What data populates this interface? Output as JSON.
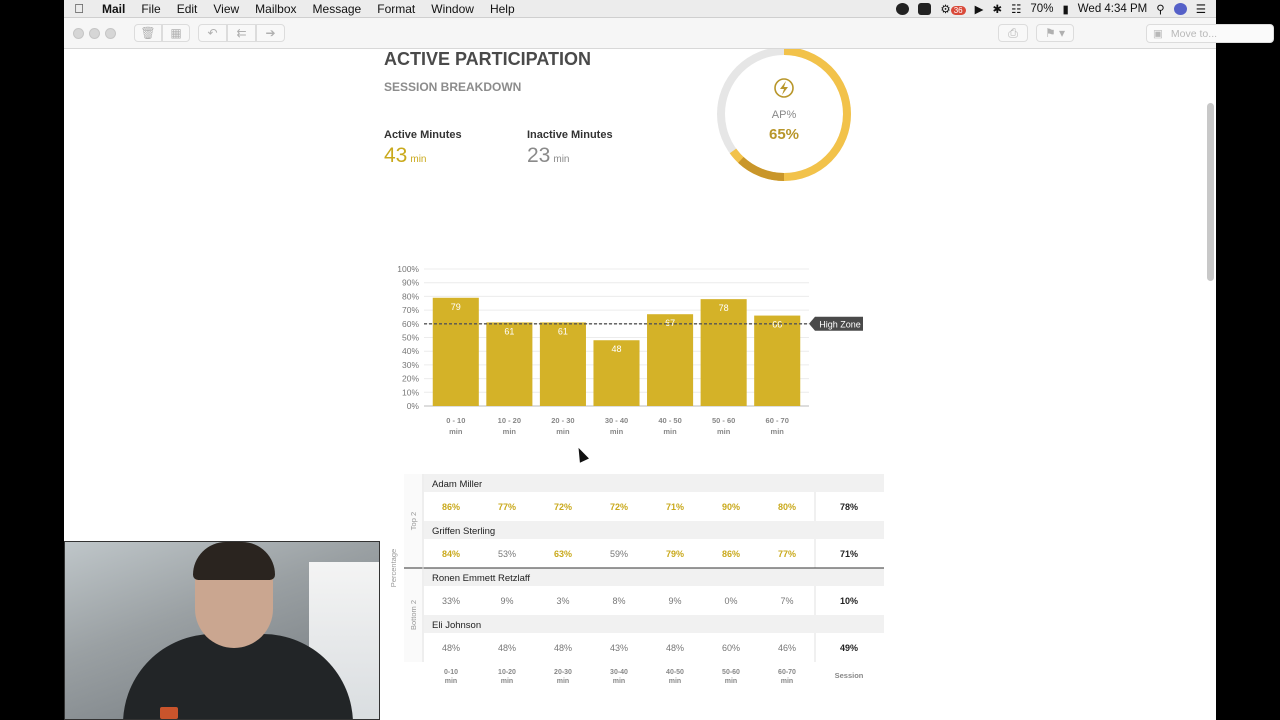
{
  "menubar": {
    "app": "Mail",
    "items": [
      "File",
      "Edit",
      "View",
      "Mailbox",
      "Message",
      "Format",
      "Window",
      "Help"
    ],
    "badge": "36",
    "battery": "70%",
    "clock": "Wed 4:34 PM"
  },
  "toolbar": {
    "move_to_placeholder": "Move to..."
  },
  "email": {
    "title": "ACTIVE PARTICIPATION",
    "subtitle": "SESSION BREAKDOWN",
    "active_label": "Active Minutes",
    "active_value": "43",
    "inactive_label": "Inactive Minutes",
    "inactive_value": "23",
    "unit": "min",
    "donut_label": "AP%",
    "donut_value": "65%",
    "donut_fraction": 0.65
  },
  "chart_data": {
    "type": "bar",
    "categories": [
      "0 - 10",
      "10 - 20",
      "20 - 30",
      "30 - 40",
      "40 - 50",
      "50 - 60",
      "60 - 70"
    ],
    "category_unit": "min",
    "values": [
      79,
      61,
      61,
      48,
      67,
      78,
      66
    ],
    "ylim": [
      0,
      100
    ],
    "yticks": [
      "0%",
      "10%",
      "20%",
      "30%",
      "40%",
      "50%",
      "60%",
      "70%",
      "80%",
      "90%",
      "100%"
    ],
    "reference_line": {
      "value": 60,
      "label": "High Zone"
    },
    "bar_color": "#d4b228"
  },
  "participants": {
    "group_labels": [
      "Percentage",
      "Top 2",
      "Bottom 2"
    ],
    "columns": [
      "0-10 min",
      "10-20 min",
      "20-30 min",
      "30-40 min",
      "40-50 min",
      "50-60 min",
      "60-70 min",
      "Session"
    ],
    "rows": [
      {
        "name": "Adam Miller",
        "values": [
          "86%",
          "77%",
          "72%",
          "72%",
          "71%",
          "90%",
          "80%"
        ],
        "highlight": [
          true,
          true,
          true,
          true,
          true,
          true,
          true
        ],
        "session": "78%"
      },
      {
        "name": "Griffen Sterling",
        "values": [
          "84%",
          "53%",
          "63%",
          "59%",
          "79%",
          "86%",
          "77%"
        ],
        "highlight": [
          true,
          false,
          true,
          false,
          true,
          true,
          true
        ],
        "session": "71%"
      },
      {
        "name": "Ronen Emmett Retzlaff",
        "values": [
          "33%",
          "9%",
          "3%",
          "8%",
          "9%",
          "0%",
          "7%"
        ],
        "highlight": [
          false,
          false,
          false,
          false,
          false,
          false,
          false
        ],
        "session": "10%"
      },
      {
        "name": "Eli Johnson",
        "values": [
          "48%",
          "48%",
          "48%",
          "43%",
          "48%",
          "60%",
          "46%"
        ],
        "highlight": [
          false,
          false,
          false,
          false,
          false,
          false,
          false
        ],
        "session": "49%"
      }
    ]
  },
  "colors": {
    "gold": "#d4b228",
    "gold_dark": "#b8962a",
    "gray": "#8a8a8a",
    "donut_track": "#e6e6e6"
  }
}
